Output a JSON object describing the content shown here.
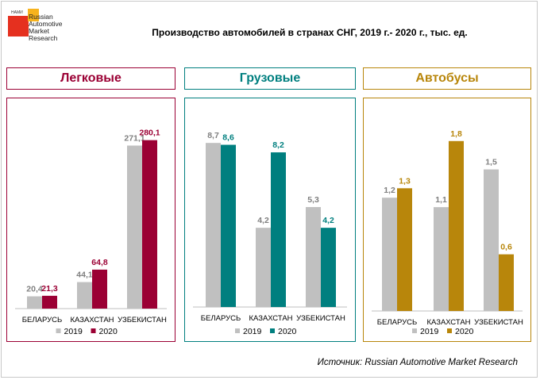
{
  "logo": {
    "small": "НАМИ",
    "lines": [
      "Russian",
      "Automotive",
      "Market",
      "Research"
    ]
  },
  "title": "Производство автомобилей в странах СНГ, 2019 г.- 2020 г., тыс. ед.",
  "source": "Источник: Russian Automotive Market Research",
  "colors": {
    "gray": "#c0c0c0",
    "passenger": "#9b0034",
    "trucks": "#007f7f",
    "buses": "#b8860b"
  },
  "chart_data": [
    {
      "type": "bar",
      "title": "Легковые",
      "categories": [
        "БЕЛАРУСЬ",
        "КАЗАХСТАН",
        "УЗБЕКИСТАН"
      ],
      "series": [
        {
          "name": "2019",
          "values": [
            20.4,
            44.1,
            271.1
          ],
          "labels": [
            "20,4",
            "44,1",
            "271,1"
          ]
        },
        {
          "name": "2020",
          "values": [
            21.3,
            64.8,
            280.1
          ],
          "labels": [
            "21,3",
            "64,8",
            "280,1"
          ]
        }
      ],
      "ylim": [
        0,
        310
      ]
    },
    {
      "type": "bar",
      "title": "Грузовые",
      "categories": [
        "БЕЛАРУСЬ",
        "КАЗАХСТАН",
        "УЗБЕКИСТАН"
      ],
      "series": [
        {
          "name": "2019",
          "values": [
            8.7,
            4.2,
            5.3
          ],
          "labels": [
            "8,7",
            "4,2",
            "5,3"
          ]
        },
        {
          "name": "2020",
          "values": [
            8.6,
            8.2,
            4.2
          ],
          "labels": [
            "8,6",
            "8,2",
            "4,2"
          ]
        }
      ],
      "ylim": [
        0,
        9.8
      ]
    },
    {
      "type": "bar",
      "title": "Автобусы",
      "categories": [
        "БЕЛАРУСЬ",
        "КАЗАХСТАН",
        "УЗБЕКИСТАН"
      ],
      "series": [
        {
          "name": "2019",
          "values": [
            1.2,
            1.1,
            1.5
          ],
          "labels": [
            "1,2",
            "1,1",
            "1,5"
          ]
        },
        {
          "name": "2020",
          "values": [
            1.3,
            1.8,
            0.6
          ],
          "labels": [
            "1,3",
            "1,8",
            "0,6"
          ]
        }
      ],
      "ylim": [
        0,
        2.0
      ]
    }
  ]
}
